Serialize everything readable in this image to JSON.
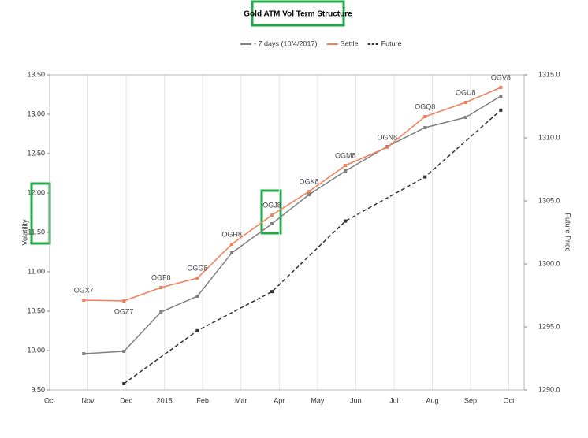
{
  "chart_data": {
    "type": "line",
    "title": "Gold ATM Vol Term Structure",
    "y_label": "Volatility",
    "y2_label": "Future Price",
    "xlim": [
      0,
      12.4
    ],
    "xticks": [
      {
        "value": 0,
        "label": "Oct"
      },
      {
        "value": 1,
        "label": "Nov"
      },
      {
        "value": 2,
        "label": "Dec"
      },
      {
        "value": 3,
        "label": "2018"
      },
      {
        "value": 4,
        "label": "Feb"
      },
      {
        "value": 5,
        "label": "Mar"
      },
      {
        "value": 6,
        "label": "Apr"
      },
      {
        "value": 7,
        "label": "May"
      },
      {
        "value": 8,
        "label": "Jun"
      },
      {
        "value": 9,
        "label": "Jul"
      },
      {
        "value": 10,
        "label": "Aug"
      },
      {
        "value": 11,
        "label": "Sep"
      },
      {
        "value": 12,
        "label": "Oct"
      }
    ],
    "ylim": [
      9.5,
      13.5
    ],
    "yticks": [
      {
        "value": 9.5,
        "label": "9.50"
      },
      {
        "value": 10,
        "label": "10.00"
      },
      {
        "value": 10.5,
        "label": "10.50"
      },
      {
        "value": 11,
        "label": "11.00"
      },
      {
        "value": 11.5,
        "label": "11.50"
      },
      {
        "value": 12,
        "label": "12.00"
      },
      {
        "value": 12.5,
        "label": "12.50"
      },
      {
        "value": 13,
        "label": "13.00"
      },
      {
        "value": 13.5,
        "label": "13.50"
      }
    ],
    "y2lim": [
      1290,
      1315
    ],
    "y2ticks": [
      {
        "value": 1290,
        "label": "1290.0"
      },
      {
        "value": 1295,
        "label": "1295.0"
      },
      {
        "value": 1300,
        "label": "1300.0"
      },
      {
        "value": 1305,
        "label": "1305.0"
      },
      {
        "value": 1310,
        "label": "1310.0"
      },
      {
        "value": 1315,
        "label": "1315.0"
      }
    ],
    "grid": true,
    "legend": "top",
    "point_labels": [
      "OGX7",
      "OGZ7",
      "OGF8",
      "OGG8",
      "OGH8",
      "OGJ8",
      "OGK8",
      "OGM8",
      "OGN8",
      "OGQ8",
      "OGU8",
      "OGV8"
    ],
    "series": [
      {
        "name": "- 7 days (10/4/2017)",
        "color": "#808080",
        "dashed": false,
        "x": [
          0.89,
          1.94,
          2.91,
          3.86,
          4.76,
          5.81,
          6.78,
          7.73,
          8.82,
          9.81,
          10.87,
          11.79
        ],
        "values": [
          9.96,
          9.99,
          10.49,
          10.69,
          11.24,
          11.61,
          11.98,
          12.28,
          12.59,
          12.83,
          12.96,
          13.23
        ]
      },
      {
        "name": "Settle",
        "color": "#f07f5a",
        "dashed": false,
        "x": [
          0.89,
          1.94,
          2.91,
          3.86,
          4.76,
          5.81,
          6.78,
          7.73,
          8.82,
          9.81,
          10.87,
          11.79
        ],
        "values": [
          10.64,
          10.63,
          10.8,
          10.92,
          11.35,
          11.72,
          12.02,
          12.35,
          12.58,
          12.97,
          13.15,
          13.34
        ]
      },
      {
        "name": "Future",
        "color": "#333333",
        "dashed": true,
        "axis": "y2",
        "x": [
          1.94,
          3.86,
          5.81,
          7.73,
          9.81,
          11.79
        ],
        "values": [
          1290.5,
          1294.7,
          1297.8,
          1303.4,
          1306.9,
          1312.2
        ]
      }
    ]
  }
}
